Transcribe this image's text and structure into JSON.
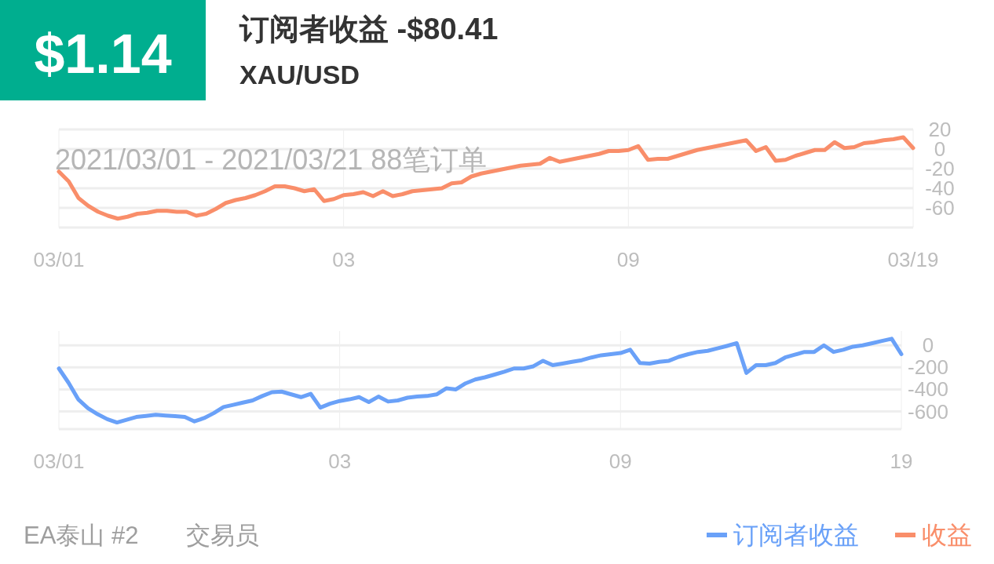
{
  "chart_data": [
    {
      "type": "line",
      "title": "订阅者收益 -$80.41",
      "subtitle": "XAU/USD",
      "annotations": [
        "$1.14",
        "2021/03/01 - 2021/03/21  88笔订单",
        "EA泰山 #2",
        "交易员"
      ],
      "categories": [
        "03/01",
        null,
        null,
        null,
        null,
        null,
        null,
        null,
        null,
        null,
        null,
        null,
        null,
        null,
        null,
        null,
        null,
        null,
        null,
        null,
        null,
        null,
        null,
        null,
        null,
        null,
        null,
        null,
        null,
        "03",
        null,
        null,
        null,
        null,
        null,
        null,
        null,
        null,
        null,
        null,
        null,
        null,
        null,
        null,
        null,
        null,
        null,
        null,
        null,
        null,
        null,
        null,
        null,
        null,
        null,
        null,
        null,
        null,
        "09",
        null,
        null,
        null,
        null,
        null,
        null,
        null,
        null,
        null,
        null,
        null,
        null,
        null,
        null,
        null,
        null,
        null,
        null,
        null,
        null,
        null,
        null,
        null,
        null,
        null,
        null,
        null,
        null,
        "03/19"
      ],
      "ylim": [
        -80,
        20
      ],
      "yticks": [
        -60,
        -40,
        -20,
        0,
        20
      ],
      "grid": true,
      "legend": "bottom right",
      "series": [
        {
          "name": "收益",
          "color": "#f98e6a",
          "values": [
            -23,
            -33,
            -50,
            -58,
            -64,
            -68,
            -71,
            -69,
            -66,
            -65,
            -63,
            -63,
            -64,
            -64,
            -68,
            -66,
            -61,
            -55,
            -52,
            -50,
            -47,
            -43,
            -38,
            -38,
            -40,
            -43,
            -41,
            -53,
            -51,
            -47,
            -46,
            -44,
            -48,
            -43,
            -48,
            -46,
            -43,
            -42,
            -41,
            -40,
            -35,
            -34,
            -28,
            -25,
            -23,
            -21,
            -19,
            -17,
            -16,
            -15,
            -9,
            -13,
            -11,
            -9,
            -7,
            -5,
            -2,
            -2,
            -1,
            3,
            -11,
            -10,
            -10,
            -7,
            -4,
            -1,
            1,
            3,
            5,
            7,
            9,
            -2,
            2,
            -12,
            -11,
            -7,
            -4,
            -1,
            -1,
            7,
            1,
            2,
            6,
            7,
            9,
            10,
            12,
            1
          ]
        }
      ]
    },
    {
      "type": "line",
      "categories": [
        "03/01",
        null,
        null,
        null,
        null,
        null,
        null,
        null,
        null,
        null,
        null,
        null,
        null,
        null,
        null,
        null,
        null,
        null,
        null,
        null,
        null,
        null,
        null,
        null,
        null,
        null,
        null,
        null,
        null,
        "03",
        null,
        null,
        null,
        null,
        null,
        null,
        null,
        null,
        null,
        null,
        null,
        null,
        null,
        null,
        null,
        null,
        null,
        null,
        null,
        null,
        null,
        null,
        null,
        null,
        null,
        null,
        null,
        null,
        "09",
        null,
        null,
        null,
        null,
        null,
        null,
        null,
        null,
        null,
        null,
        null,
        null,
        null,
        null,
        null,
        null,
        null,
        null,
        null,
        null,
        null,
        null,
        null,
        null,
        null,
        null,
        null,
        null,
        "19"
      ],
      "ylim": [
        -760,
        130
      ],
      "yticks": [
        -600,
        -400,
        -200,
        0
      ],
      "grid": true,
      "legend": "bottom right",
      "series": [
        {
          "name": "订阅者收益",
          "color": "#6aa1f8",
          "values": [
            -210,
            -340,
            -490,
            -570,
            -625,
            -670,
            -700,
            -675,
            -650,
            -640,
            -630,
            -637,
            -643,
            -650,
            -690,
            -660,
            -615,
            -560,
            -540,
            -520,
            -500,
            -460,
            -425,
            -420,
            -445,
            -470,
            -440,
            -565,
            -530,
            -505,
            -490,
            -470,
            -515,
            -465,
            -510,
            -500,
            -475,
            -465,
            -460,
            -445,
            -390,
            -400,
            -345,
            -310,
            -290,
            -265,
            -240,
            -210,
            -210,
            -190,
            -140,
            -180,
            -165,
            -150,
            -135,
            -110,
            -90,
            -80,
            -70,
            -40,
            -160,
            -165,
            -150,
            -140,
            -105,
            -80,
            -60,
            -50,
            -28,
            -5,
            20,
            -250,
            -180,
            -180,
            -160,
            -110,
            -85,
            -60,
            -60,
            0,
            -60,
            -40,
            -12,
            0,
            20,
            40,
            60,
            -80
          ]
        }
      ]
    }
  ]
}
